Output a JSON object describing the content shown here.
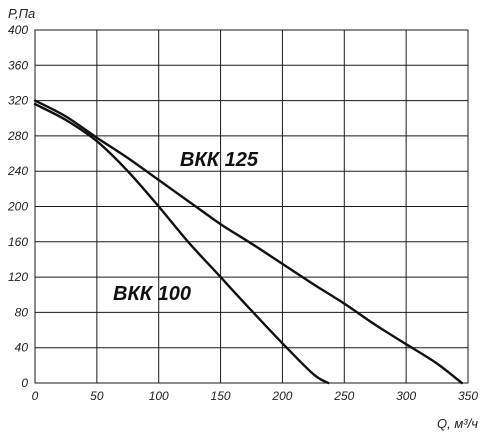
{
  "chart_data": {
    "type": "line",
    "ylabel": "P,Па",
    "xlabel": "Q, м³/ч",
    "xlim": [
      0,
      350
    ],
    "ylim": [
      0,
      400
    ],
    "x_ticks": [
      "0",
      "50",
      "100",
      "150",
      "200",
      "250",
      "300",
      "350"
    ],
    "y_ticks": [
      "0",
      "40",
      "80",
      "120",
      "160",
      "200",
      "240",
      "280",
      "320",
      "360",
      "400"
    ],
    "grid": true,
    "series": [
      {
        "name": "ВКК 125",
        "x": [
          0,
          25,
          50,
          75,
          100,
          125,
          150,
          175,
          200,
          225,
          250,
          275,
          300,
          325,
          345
        ],
        "y": [
          320,
          302,
          278,
          255,
          230,
          205,
          180,
          158,
          135,
          112,
          90,
          66,
          44,
          22,
          0
        ]
      },
      {
        "name": "ВКК 100",
        "x": [
          0,
          25,
          50,
          75,
          100,
          125,
          150,
          175,
          200,
          225,
          237
        ],
        "y": [
          316,
          298,
          274,
          240,
          200,
          158,
          120,
          82,
          45,
          10,
          0
        ]
      }
    ]
  }
}
